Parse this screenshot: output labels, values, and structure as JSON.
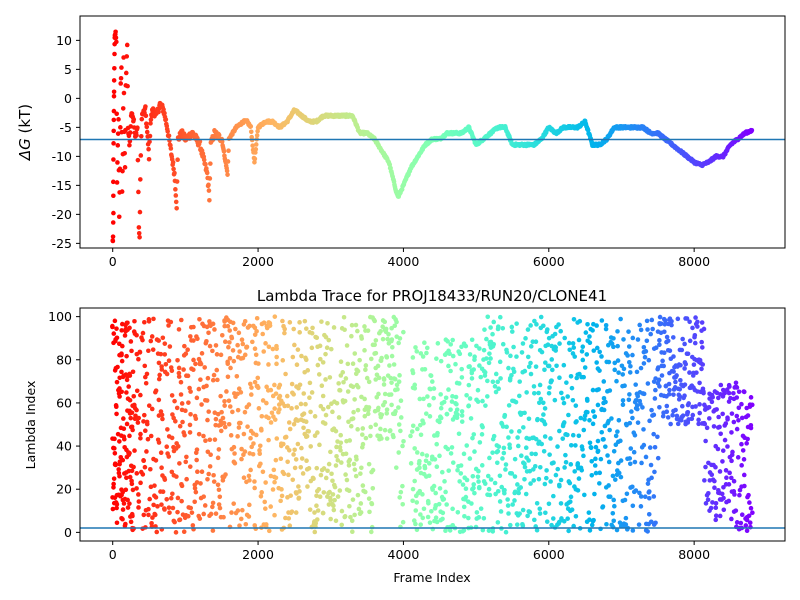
{
  "chart_data": [
    {
      "type": "scatter",
      "title": "",
      "xlabel": "",
      "ylabel_symbol": "ΔG",
      "ylabel_unit": "(kT)",
      "xlim": [
        -450,
        9250
      ],
      "ylim": [
        -25.8,
        14.2
      ],
      "xticks": [
        0,
        2000,
        4000,
        6000,
        8000
      ],
      "yticks": [
        10,
        5,
        0,
        -5,
        -10,
        -15,
        -20,
        -25
      ],
      "reference_line": -7.1,
      "x_max": 8800,
      "colormap": "rainbow",
      "series_points": [
        [
          0,
          -24.7
        ],
        [
          5,
          -24
        ],
        [
          10,
          -20
        ],
        [
          8,
          -14
        ],
        [
          12,
          -8
        ],
        [
          15,
          -4
        ],
        [
          18,
          0
        ],
        [
          20,
          3
        ],
        [
          25,
          8
        ],
        [
          28,
          10
        ],
        [
          32,
          11
        ],
        [
          40,
          11.2
        ],
        [
          50,
          10
        ],
        [
          60,
          -15
        ],
        [
          70,
          -8
        ],
        [
          80,
          -4
        ],
        [
          90,
          -20
        ],
        [
          100,
          -12
        ],
        [
          110,
          2
        ],
        [
          120,
          5
        ],
        [
          130,
          -16
        ],
        [
          140,
          -10
        ],
        [
          150,
          7
        ],
        [
          160,
          -6
        ],
        [
          170,
          -12
        ],
        [
          180,
          2
        ],
        [
          200,
          9.5
        ],
        [
          210,
          -5
        ],
        [
          230,
          -8
        ],
        [
          260,
          -2
        ],
        [
          290,
          -4
        ],
        [
          310,
          -7
        ],
        [
          340,
          -5
        ],
        [
          360,
          -22
        ],
        [
          370,
          -24.5
        ],
        [
          380,
          -14
        ],
        [
          400,
          -3
        ],
        [
          450,
          -2
        ],
        [
          500,
          -10
        ],
        [
          520,
          -4
        ],
        [
          550,
          -2
        ],
        [
          600,
          -3
        ],
        [
          650,
          -1
        ],
        [
          700,
          -2
        ],
        [
          750,
          -5
        ],
        [
          800,
          -9
        ],
        [
          850,
          -13
        ],
        [
          880,
          -18.5
        ],
        [
          900,
          -7
        ],
        [
          950,
          -6
        ],
        [
          1000,
          -7
        ],
        [
          1100,
          -6
        ],
        [
          1200,
          -8
        ],
        [
          1300,
          -13
        ],
        [
          1330,
          -17
        ],
        [
          1350,
          -8
        ],
        [
          1400,
          -6
        ],
        [
          1500,
          -7
        ],
        [
          1580,
          -13
        ],
        [
          1600,
          -7
        ],
        [
          1700,
          -5
        ],
        [
          1800,
          -4
        ],
        [
          1850,
          -4
        ],
        [
          1900,
          -5
        ],
        [
          1950,
          -11
        ],
        [
          2000,
          -5
        ],
        [
          2100,
          -4
        ],
        [
          2200,
          -4
        ],
        [
          2300,
          -5
        ],
        [
          2400,
          -4
        ],
        [
          2500,
          -2
        ],
        [
          2600,
          -3
        ],
        [
          2700,
          -4
        ],
        [
          2800,
          -4
        ],
        [
          2900,
          -3
        ],
        [
          3000,
          -3
        ],
        [
          3100,
          -3
        ],
        [
          3200,
          -3
        ],
        [
          3300,
          -3
        ],
        [
          3400,
          -6
        ],
        [
          3500,
          -6
        ],
        [
          3600,
          -7
        ],
        [
          3700,
          -9
        ],
        [
          3800,
          -11
        ],
        [
          3900,
          -16
        ],
        [
          3930,
          -17
        ],
        [
          4000,
          -15
        ],
        [
          4100,
          -12
        ],
        [
          4200,
          -10
        ],
        [
          4300,
          -8
        ],
        [
          4400,
          -7
        ],
        [
          4500,
          -7
        ],
        [
          4600,
          -6
        ],
        [
          4700,
          -6
        ],
        [
          4800,
          -6
        ],
        [
          4900,
          -5
        ],
        [
          5000,
          -8
        ],
        [
          5100,
          -7
        ],
        [
          5200,
          -6
        ],
        [
          5300,
          -5
        ],
        [
          5400,
          -5
        ],
        [
          5500,
          -8
        ],
        [
          5600,
          -8
        ],
        [
          5700,
          -8
        ],
        [
          5800,
          -8
        ],
        [
          5900,
          -7
        ],
        [
          6000,
          -5
        ],
        [
          6100,
          -6
        ],
        [
          6200,
          -5
        ],
        [
          6300,
          -5
        ],
        [
          6400,
          -5
        ],
        [
          6500,
          -4
        ],
        [
          6600,
          -8
        ],
        [
          6700,
          -8
        ],
        [
          6800,
          -7
        ],
        [
          6900,
          -5
        ],
        [
          7000,
          -5
        ],
        [
          7100,
          -5
        ],
        [
          7200,
          -5
        ],
        [
          7300,
          -5
        ],
        [
          7400,
          -6
        ],
        [
          7500,
          -6
        ],
        [
          7600,
          -7
        ],
        [
          7700,
          -8
        ],
        [
          7800,
          -9
        ],
        [
          7900,
          -10
        ],
        [
          8000,
          -11
        ],
        [
          8100,
          -11.5
        ],
        [
          8200,
          -11
        ],
        [
          8300,
          -10
        ],
        [
          8400,
          -10
        ],
        [
          8500,
          -8
        ],
        [
          8600,
          -7
        ],
        [
          8700,
          -6
        ],
        [
          8800,
          -5.5
        ]
      ]
    },
    {
      "type": "scatter",
      "title": "Lambda Trace for PROJ18433/RUN20/CLONE41",
      "xlabel": "Frame Index",
      "ylabel": "Lambda Index",
      "xlim": [
        -450,
        9250
      ],
      "ylim": [
        -4,
        104
      ],
      "xticks": [
        0,
        2000,
        4000,
        6000,
        8000
      ],
      "yticks": [
        100,
        80,
        60,
        40,
        20,
        0
      ],
      "reference_line": 2,
      "x_max": 8800,
      "colormap": "rainbow",
      "gap_intervals": [
        [
          4000,
          4100
        ]
      ]
    }
  ]
}
